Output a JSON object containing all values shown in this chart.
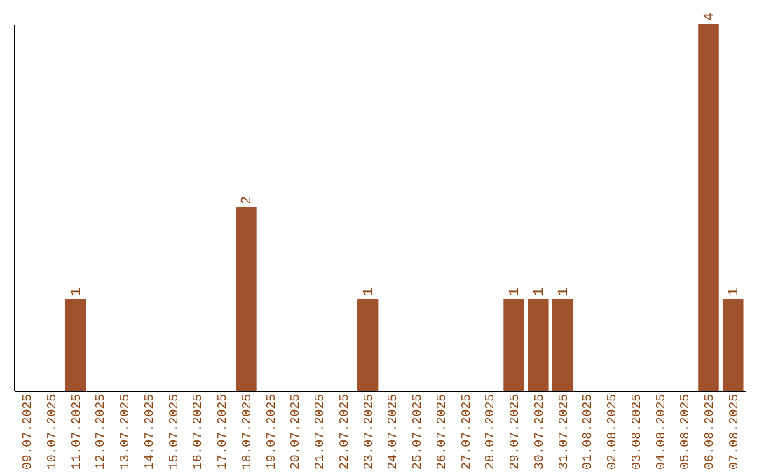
{
  "chart_data": {
    "type": "bar",
    "categories": [
      "09.07.2025",
      "10.07.2025",
      "11.07.2025",
      "12.07.2025",
      "13.07.2025",
      "14.07.2025",
      "15.07.2025",
      "16.07.2025",
      "17.07.2025",
      "18.07.2025",
      "19.07.2025",
      "20.07.2025",
      "21.07.2025",
      "22.07.2025",
      "23.07.2025",
      "24.07.2025",
      "25.07.2025",
      "26.07.2025",
      "27.07.2025",
      "28.07.2025",
      "29.07.2025",
      "30.07.2025",
      "31.07.2025",
      "01.08.2025",
      "02.08.2025",
      "03.08.2025",
      "04.08.2025",
      "05.08.2025",
      "06.08.2025",
      "07.08.2025"
    ],
    "values": [
      null,
      null,
      1,
      null,
      null,
      null,
      null,
      null,
      null,
      2,
      null,
      null,
      null,
      null,
      1,
      null,
      null,
      null,
      null,
      null,
      1,
      1,
      1,
      null,
      null,
      null,
      null,
      null,
      4,
      1
    ],
    "color": "#a0522d",
    "data_labels": true,
    "grid": false,
    "tick_labels": "x"
  }
}
